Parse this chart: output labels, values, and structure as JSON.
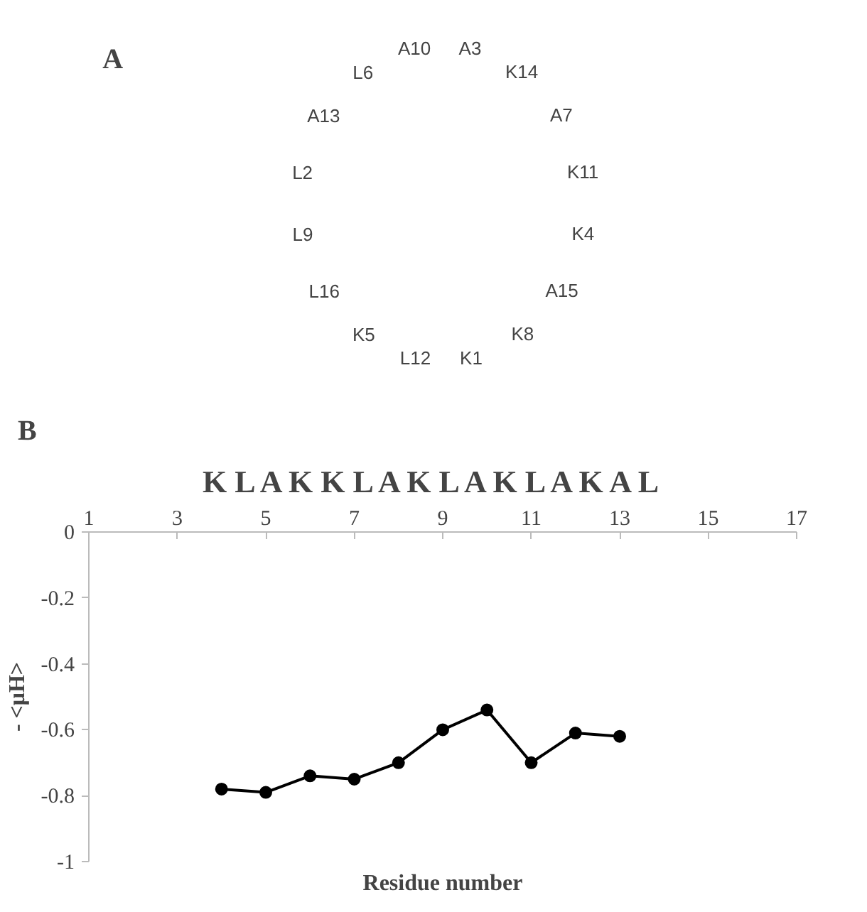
{
  "chart_data": [
    {
      "type": "other",
      "title": "A",
      "annotations": [
        "A10",
        "A3",
        "K14",
        "A7",
        "K11",
        "K4",
        "A15",
        "K8",
        "K1",
        "L12",
        "K5",
        "L16",
        "L9",
        "L2",
        "A13",
        "L6"
      ]
    },
    {
      "type": "line",
      "title": "B",
      "subtitle": "K L A K K L A K L A K L A K A L",
      "xlabel": "Residue number",
      "ylabel": "- <μH>",
      "x": [
        4,
        5,
        6,
        7,
        8,
        9,
        10,
        11,
        12,
        13
      ],
      "series": [
        {
          "color": "#000000",
          "values": [
            -0.78,
            -0.79,
            -0.74,
            -0.75,
            -0.7,
            -0.6,
            -0.54,
            -0.7,
            -0.61,
            -0.62
          ]
        }
      ],
      "xlim": [
        1,
        17
      ],
      "xticks": [
        1,
        3,
        5,
        7,
        9,
        11,
        13,
        15,
        17
      ],
      "ylim": [
        -1,
        0
      ],
      "yticks": [
        0,
        -0.2,
        -0.4,
        -0.6,
        -0.8,
        -1
      ],
      "marker": "circle",
      "grid": false
    }
  ]
}
